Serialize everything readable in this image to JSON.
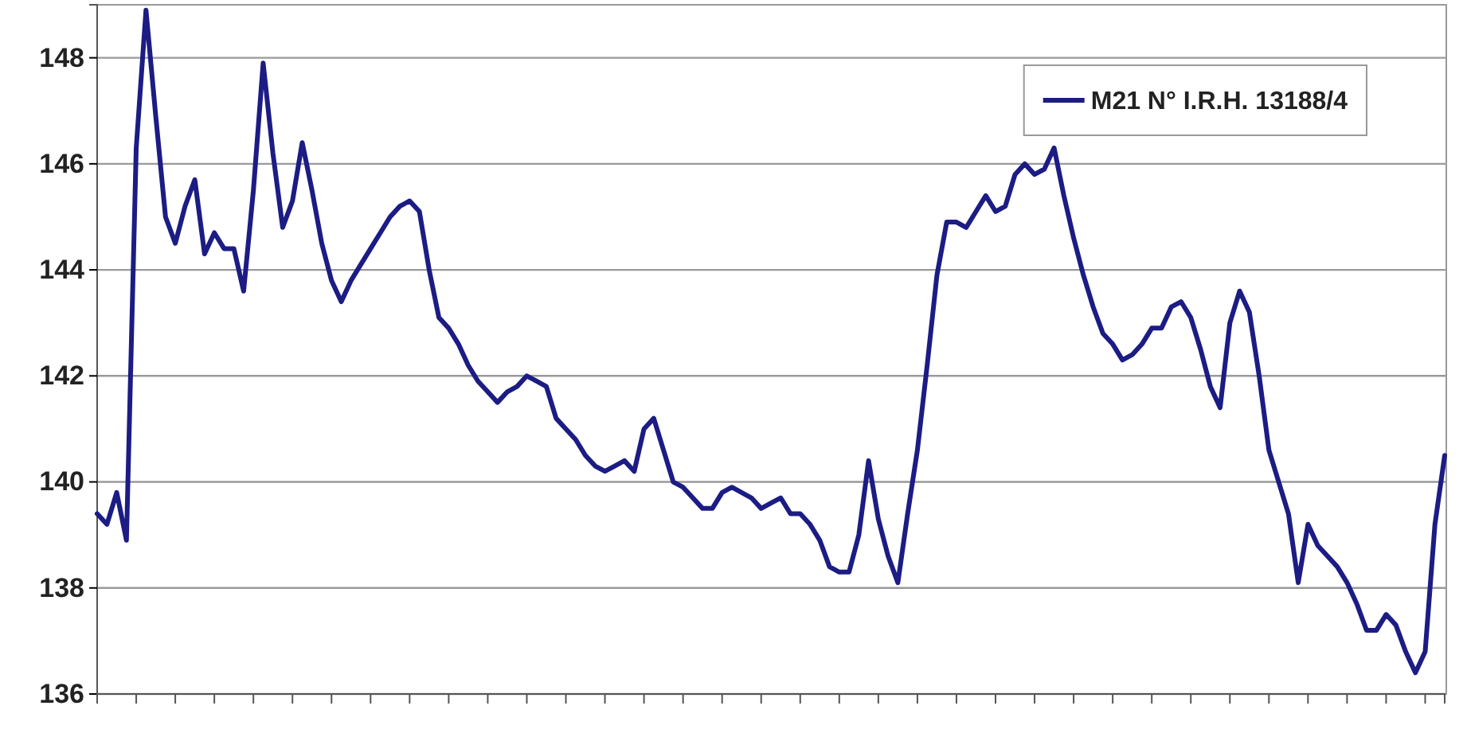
{
  "chart_data": {
    "type": "line",
    "legend": "top right",
    "grid": "y",
    "tick_labels": "y",
    "marker": "none",
    "line_style": "solid",
    "categories": [
      null,
      null,
      null,
      null,
      null,
      null,
      null,
      null,
      null,
      null,
      null,
      null,
      null,
      null,
      null,
      null,
      null,
      null,
      null,
      null,
      null,
      null,
      null,
      null,
      null,
      null,
      null,
      null,
      null,
      null,
      null,
      null,
      null,
      null,
      null,
      null,
      null,
      null,
      null,
      null,
      null,
      null,
      null,
      null,
      null,
      null,
      null,
      null,
      null,
      null,
      null,
      null,
      null,
      null,
      null,
      null,
      null,
      null,
      null,
      null,
      null,
      null,
      null,
      null,
      null,
      null,
      null,
      null,
      null,
      null,
      null,
      null,
      null,
      null,
      null,
      null,
      null,
      null,
      null,
      null,
      null,
      null,
      null,
      null,
      null,
      null,
      null,
      null,
      null,
      null,
      null,
      null,
      null,
      null,
      null,
      null,
      null,
      null,
      null,
      null,
      null,
      null,
      null,
      null,
      null,
      null,
      null,
      null,
      null,
      null,
      null,
      null,
      null,
      null,
      null,
      null,
      null,
      null,
      null,
      null,
      null,
      null,
      null,
      null,
      null,
      null,
      null,
      null,
      null,
      null,
      null,
      null,
      null,
      null,
      null,
      null,
      null,
      null,
      null
    ],
    "ylim": [
      136,
      149
    ],
    "yticks": [
      136,
      138,
      140,
      142,
      144,
      146,
      148
    ],
    "series": [
      {
        "name": "M21 N° I.R.H. 13188/4",
        "color": "#1c1c85",
        "values": [
          139.4,
          139.2,
          139.8,
          138.9,
          146.3,
          148.9,
          146.9,
          145.0,
          144.5,
          145.2,
          145.7,
          144.3,
          144.7,
          144.4,
          144.4,
          143.6,
          145.5,
          147.9,
          146.2,
          144.8,
          145.3,
          146.4,
          145.5,
          144.5,
          143.8,
          143.4,
          143.8,
          144.1,
          144.4,
          144.7,
          145.0,
          145.2,
          145.3,
          145.1,
          144.0,
          143.1,
          142.9,
          142.6,
          142.2,
          141.9,
          141.7,
          141.5,
          141.7,
          141.8,
          142.0,
          141.9,
          141.8,
          141.2,
          141.0,
          140.8,
          140.5,
          140.3,
          140.2,
          140.3,
          140.4,
          140.2,
          141.0,
          141.2,
          140.6,
          140.0,
          139.9,
          139.7,
          139.5,
          139.5,
          139.8,
          139.9,
          139.8,
          139.7,
          139.5,
          139.6,
          139.7,
          139.4,
          139.4,
          139.2,
          138.9,
          138.4,
          138.3,
          138.3,
          139.0,
          140.4,
          139.3,
          138.6,
          138.1,
          139.4,
          140.6,
          142.2,
          143.9,
          144.9,
          144.9,
          144.8,
          145.1,
          145.4,
          145.1,
          145.2,
          145.8,
          146.0,
          145.8,
          145.9,
          146.3,
          145.4,
          144.6,
          143.9,
          143.3,
          142.8,
          142.6,
          142.3,
          142.4,
          142.6,
          142.9,
          142.9,
          143.3,
          143.4,
          143.1,
          142.5,
          141.8,
          141.4,
          143.0,
          143.6,
          143.2,
          142.0,
          140.6,
          140.0,
          139.4,
          138.1,
          139.2,
          138.8,
          138.6,
          138.4,
          138.1,
          137.7,
          137.2,
          137.2,
          137.5,
          137.3,
          136.8,
          136.4,
          136.8,
          139.2,
          140.5
        ]
      }
    ]
  }
}
